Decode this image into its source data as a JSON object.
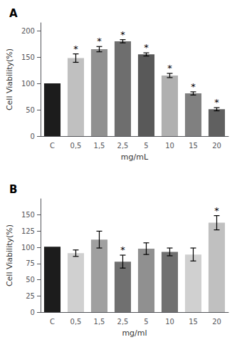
{
  "chart_data": [
    {
      "type": "bar",
      "title": "A",
      "categories": [
        "C",
        "0,5",
        "1,5",
        "2,5",
        "5",
        "10",
        "15",
        "20"
      ],
      "values": [
        100,
        148,
        165,
        180,
        155,
        115,
        81,
        51
      ],
      "errors": [
        0,
        8,
        5,
        3,
        3,
        4,
        3,
        3
      ],
      "colors": [
        "#1c1c1c",
        "#c0c0c0",
        "#909090",
        "#6e6e6e",
        "#595959",
        "#b0b0b0",
        "#808080",
        "#606060"
      ],
      "annotations": [
        {
          "x": "0,5",
          "text": "*"
        },
        {
          "x": "1,5",
          "text": "*"
        },
        {
          "x": "2,5",
          "text": "*"
        },
        {
          "x": "5",
          "text": "*"
        },
        {
          "x": "10",
          "text": "*"
        },
        {
          "x": "15",
          "text": "*"
        },
        {
          "x": "20",
          "text": "*"
        }
      ],
      "xlabel": "mg/mL",
      "ylabel": "Cell Viability(%)",
      "ylim": [
        0,
        215
      ],
      "yticks": [
        0,
        50,
        100,
        150,
        200
      ],
      "grid": false
    },
    {
      "type": "bar",
      "title": "B",
      "categories": [
        "C",
        "0,5",
        "1,5",
        "2,5",
        "5",
        "10",
        "15",
        "20"
      ],
      "values": [
        101,
        91,
        112,
        78,
        98,
        93,
        89,
        138
      ],
      "errors": [
        0,
        5,
        13,
        10,
        9,
        6,
        10,
        11
      ],
      "colors": [
        "#1c1c1c",
        "#d0d0d0",
        "#a0a0a0",
        "#707070",
        "#909090",
        "#707070",
        "#d0d0d0",
        "#c0c0c0"
      ],
      "annotations": [
        {
          "x": "2,5",
          "text": "*"
        },
        {
          "x": "20",
          "text": "*"
        }
      ],
      "xlabel": "mg/ml",
      "ylabel": "Cell Viability(%)",
      "ylim": [
        0,
        175
      ],
      "yticks": [
        0,
        25,
        50,
        75,
        100,
        125,
        150
      ],
      "grid": false
    }
  ]
}
